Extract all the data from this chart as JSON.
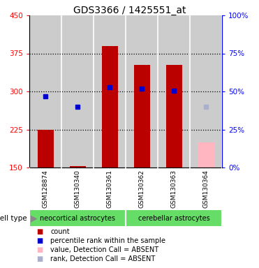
{
  "title": "GDS3366 / 1425551_at",
  "samples": [
    "GSM128874",
    "GSM130340",
    "GSM130361",
    "GSM130362",
    "GSM130363",
    "GSM130364"
  ],
  "count_values": [
    225,
    153,
    390,
    352,
    352,
    200
  ],
  "count_absent": [
    false,
    false,
    false,
    false,
    false,
    true
  ],
  "percentile_values": [
    290,
    270,
    308,
    305,
    302,
    270
  ],
  "percentile_absent": [
    false,
    false,
    false,
    false,
    false,
    true
  ],
  "ylim_left": [
    150,
    450
  ],
  "ylim_right": [
    0,
    100
  ],
  "yticks_left": [
    150,
    225,
    300,
    375,
    450
  ],
  "yticks_right": [
    0,
    25,
    50,
    75,
    100
  ],
  "cell_type_groups": [
    {
      "label": "neocortical astrocytes",
      "start": 0,
      "end": 3,
      "color": "#66dd66"
    },
    {
      "label": "cerebellar astrocytes",
      "start": 3,
      "end": 6,
      "color": "#66dd66"
    }
  ],
  "bar_color_present": "#bb0000",
  "bar_color_absent": "#ffb6c1",
  "dot_color_present": "#0000cc",
  "dot_color_absent": "#aab0cc",
  "bar_width": 0.5,
  "background_color": "#ffffff",
  "plot_bg_color": "#cccccc",
  "sample_bg_color": "#cccccc",
  "legend_items": [
    {
      "label": "count",
      "color": "#bb0000"
    },
    {
      "label": "percentile rank within the sample",
      "color": "#0000cc"
    },
    {
      "label": "value, Detection Call = ABSENT",
      "color": "#ffb6c1"
    },
    {
      "label": "rank, Detection Call = ABSENT",
      "color": "#aab0cc"
    }
  ],
  "fig_width": 3.71,
  "fig_height": 3.84,
  "dpi": 100
}
